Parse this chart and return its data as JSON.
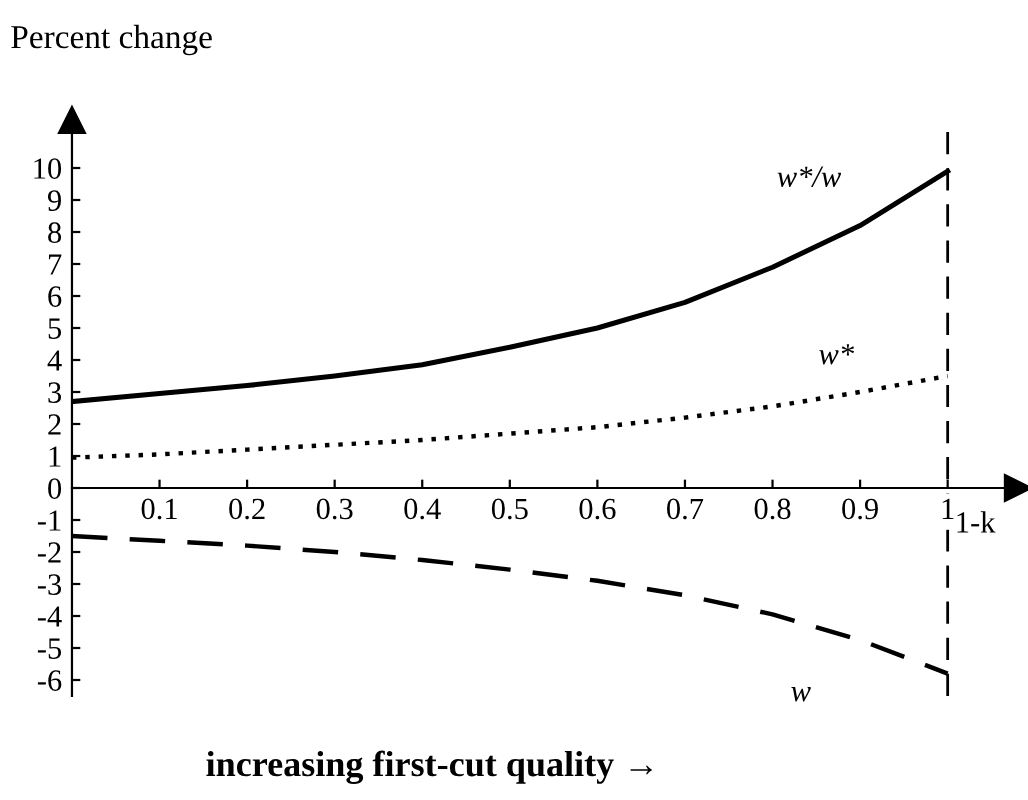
{
  "chart_data": {
    "type": "line",
    "ylabel": "Percent change",
    "xlabel": "1-k",
    "x": [
      0,
      0.1,
      0.2,
      0.3,
      0.4,
      0.5,
      0.6,
      0.7,
      0.8,
      0.9,
      1.0
    ],
    "series": [
      {
        "name": "w*/w",
        "color": "#000000",
        "line_style": "solid",
        "values": [
          2.7,
          2.95,
          3.2,
          3.5,
          3.85,
          4.4,
          5.0,
          5.8,
          6.9,
          8.2,
          9.9
        ]
      },
      {
        "name": "w*",
        "color": "#000000",
        "line_style": "dotted",
        "values": [
          0.95,
          1.05,
          1.2,
          1.35,
          1.5,
          1.7,
          1.9,
          2.2,
          2.55,
          3.0,
          3.5
        ]
      },
      {
        "name": "w",
        "color": "#000000",
        "line_style": "dashed",
        "values": [
          -1.5,
          -1.65,
          -1.8,
          -2.0,
          -2.25,
          -2.55,
          -2.9,
          -3.35,
          -3.95,
          -4.75,
          -5.8
        ]
      }
    ],
    "xlim": [
      0,
      1.08
    ],
    "ylim": [
      -6.5,
      11.5
    ],
    "xticks": [
      0.1,
      0.2,
      0.3,
      0.4,
      0.5,
      0.6,
      0.7,
      0.8,
      0.9,
      1
    ],
    "yticks": [
      -6,
      -5,
      -4,
      -3,
      -2,
      -1,
      0,
      1,
      2,
      3,
      4,
      5,
      6,
      7,
      8,
      9,
      10
    ],
    "ref_lines": [
      {
        "axis": "x",
        "value": 1,
        "color": "#000000",
        "line_style": "dashed"
      }
    ],
    "annotations": [
      "increasing first-cut quality →"
    ],
    "grid": false,
    "legend": false,
    "marker": "none"
  }
}
